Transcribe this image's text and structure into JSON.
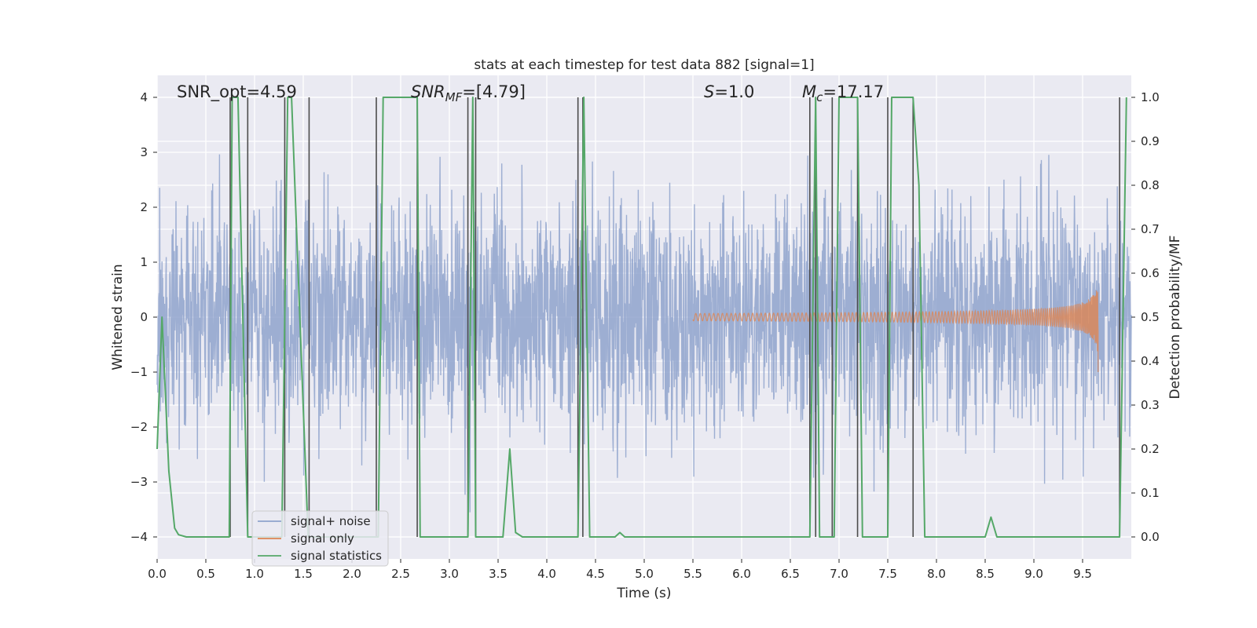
{
  "chart_data": {
    "type": "line",
    "title": "stats at each timestep for test data 882 [signal=1]",
    "xlabel": "Time (s)",
    "ylabel_left": "Whitened strain",
    "ylabel_right": "Detection probability/MF",
    "xlim": [
      0.0,
      10.0
    ],
    "ylim_left": [
      -4.4,
      4.4
    ],
    "ylim_right": [
      -0.05,
      1.05
    ],
    "xticks": [
      "0.0",
      "0.5",
      "1.0",
      "1.5",
      "2.0",
      "2.5",
      "3.0",
      "3.5",
      "4.0",
      "4.5",
      "5.0",
      "5.5",
      "6.0",
      "6.5",
      "7.0",
      "7.5",
      "8.0",
      "8.5",
      "9.0",
      "9.5"
    ],
    "yticks_left": [
      "4",
      "3",
      "2",
      "1",
      "0",
      "−1",
      "−2",
      "−3",
      "−4"
    ],
    "yticks_right": [
      "1.0",
      "0.9",
      "0.8",
      "0.7",
      "0.6",
      "0.5",
      "0.4",
      "0.3",
      "0.2",
      "0.1",
      "0.0"
    ],
    "grid": true,
    "legend_position": "lower-left",
    "annotations": {
      "snr_opt": "SNR_opt=4.59",
      "snr_mf_sym": "SNR",
      "snr_mf_sub": "MF",
      "snr_mf_val": "=[4.79]",
      "s_sym": "S",
      "s_val": "=1.0",
      "mc_sym": "M",
      "mc_sub": "c",
      "mc_val": "=17.17"
    },
    "series": [
      {
        "name": "signal+ noise",
        "color": "#8fa3cc",
        "kind": "noise",
        "approx_std": 1.0,
        "x_range": [
          0.0,
          10.0
        ]
      },
      {
        "name": "signal only",
        "color": "#dd8452",
        "kind": "chirp",
        "x_range": [
          5.5,
          9.66
        ],
        "peak_amplitude": 0.8,
        "peak_time": 9.66
      },
      {
        "name": "signal statistics",
        "color": "#55a868",
        "axis": "right",
        "x": [
          0.0,
          0.05,
          0.12,
          0.18,
          0.22,
          0.3,
          0.4,
          0.5,
          0.6,
          0.74,
          0.77,
          0.83,
          0.93,
          0.95,
          1.0,
          1.05,
          1.1,
          1.15,
          1.2,
          1.28,
          1.34,
          1.38,
          1.55,
          1.58,
          1.65,
          1.7,
          1.8,
          1.9,
          2.0,
          2.1,
          2.2,
          2.27,
          2.32,
          2.67,
          2.7,
          2.76,
          2.9,
          3.0,
          3.1,
          3.19,
          3.24,
          3.27,
          3.3,
          3.4,
          3.5,
          3.55,
          3.62,
          3.68,
          3.75,
          3.8,
          3.9,
          4.0,
          4.1,
          4.2,
          4.32,
          4.38,
          4.44,
          4.6,
          4.7,
          4.75,
          4.8,
          5.0,
          5.5,
          6.0,
          6.5,
          6.7,
          6.76,
          6.8,
          6.85,
          6.95,
          7.0,
          7.19,
          7.24,
          7.28,
          7.35,
          7.5,
          7.54,
          7.6,
          7.7,
          7.76,
          7.82,
          7.88,
          7.95,
          8.2,
          8.5,
          8.56,
          8.62,
          8.7,
          9.0,
          9.5,
          9.88,
          9.95
        ],
        "y": [
          0.2,
          0.5,
          0.15,
          0.02,
          0.005,
          0.0,
          0.0,
          0.0,
          0.0,
          0.0,
          1.0,
          1.0,
          0.0,
          0.0,
          0.0,
          0.0,
          0.0,
          0.0,
          0.0,
          0.0,
          1.0,
          1.0,
          0.0,
          0.0,
          0.0,
          0.0,
          0.0,
          0.0,
          0.0,
          0.0,
          0.0,
          0.0,
          1.0,
          1.0,
          0.0,
          0.0,
          0.0,
          0.0,
          0.0,
          0.0,
          1.0,
          0.0,
          0.0,
          0.0,
          0.0,
          0.0,
          0.2,
          0.01,
          0.0,
          0.0,
          0.0,
          0.0,
          0.0,
          0.0,
          0.0,
          1.0,
          0.0,
          0.0,
          0.0,
          0.01,
          0.0,
          0.0,
          0.0,
          0.0,
          0.0,
          0.0,
          1.0,
          0.0,
          0.0,
          0.0,
          1.0,
          1.0,
          0.0,
          0.0,
          0.0,
          0.0,
          1.0,
          1.0,
          1.0,
          1.0,
          0.8,
          0.0,
          0.0,
          0.0,
          0.0,
          0.045,
          0.0,
          0.0,
          0.0,
          0.0,
          0.0,
          1.0
        ]
      }
    ],
    "vertical_markers": [
      0.75,
      0.93,
      1.31,
      1.56,
      2.25,
      2.67,
      3.19,
      3.27,
      4.32,
      4.37,
      6.7,
      6.76,
      6.93,
      7.19,
      7.5,
      7.76,
      9.88
    ]
  }
}
